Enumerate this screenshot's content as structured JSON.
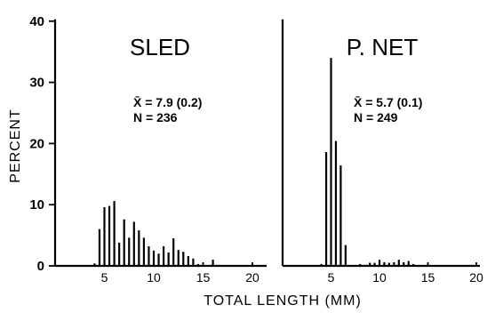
{
  "chart_data": {
    "type": "bar",
    "ylabel": "PERCENT",
    "xlabel": "TOTAL LENGTH (MM)",
    "ylim": [
      0,
      40
    ],
    "yticks": [
      "0",
      "10",
      "20",
      "30",
      "40"
    ],
    "xlim": [
      0,
      20
    ],
    "xticks": [
      "5",
      "10",
      "15",
      "20"
    ],
    "panels": [
      {
        "title": "SLED",
        "mean_label": "X̄ = 7.9 (0.2)",
        "n_label": "N = 236",
        "x": [
          4.0,
          4.5,
          5.0,
          5.5,
          6.0,
          6.5,
          7.0,
          7.5,
          8.0,
          8.5,
          9.0,
          9.5,
          10.0,
          10.5,
          11.0,
          11.5,
          12.0,
          12.5,
          13.0,
          13.5,
          14.0,
          14.5,
          16.0
        ],
        "values": [
          0.4,
          6.0,
          9.6,
          9.8,
          10.6,
          3.8,
          7.6,
          4.6,
          7.2,
          5.8,
          4.6,
          3.2,
          2.5,
          2.0,
          3.2,
          2.2,
          4.5,
          2.6,
          2.3,
          1.6,
          1.2,
          0.3,
          1.0
        ]
      },
      {
        "title": "P. NET",
        "mean_label": "X̄ = 5.7 (0.1)",
        "n_label": "N = 249",
        "x": [
          4.0,
          4.5,
          5.0,
          5.5,
          6.0,
          6.5,
          8.0,
          9.0,
          9.5,
          10.0,
          10.5,
          11.0,
          11.5,
          12.0,
          12.5,
          13.0,
          13.5
        ],
        "values": [
          0.3,
          18.6,
          34.0,
          20.4,
          16.4,
          3.4,
          0.3,
          0.5,
          0.5,
          1.0,
          0.6,
          0.5,
          0.6,
          1.0,
          0.6,
          0.8,
          0.3
        ]
      }
    ]
  }
}
